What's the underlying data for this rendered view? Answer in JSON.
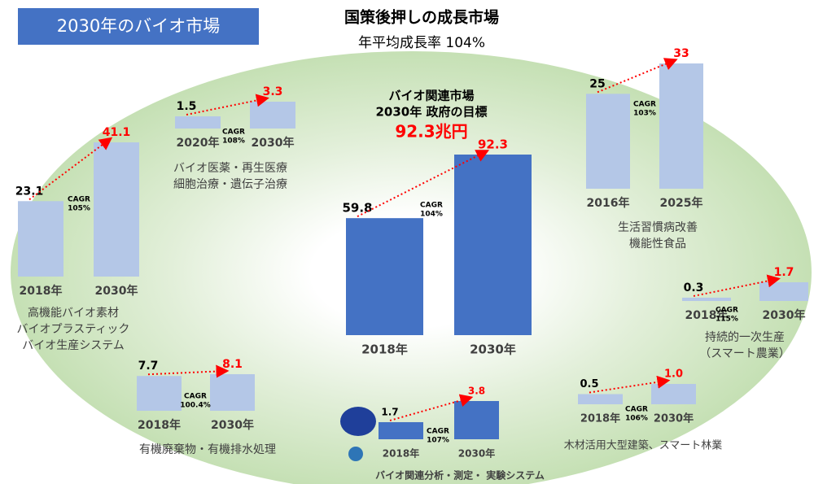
{
  "header": {
    "badge": "2030年のバイオ市場",
    "title": "国策後押しの成長市場",
    "subtitle": "年平均成長率 104%"
  },
  "chart_data": [
    {
      "type": "bar",
      "categories": [
        "2018年",
        "2030年"
      ],
      "values": [
        23.1,
        41.1
      ],
      "color": "#b4c7e7",
      "label_colors": [
        "#000000",
        "#ff0000"
      ],
      "annotation": [
        "CAGR",
        "105%"
      ],
      "description": [
        "高機能バイオ素材",
        "バイオプラスティック",
        "バイオ生産システム"
      ]
    },
    {
      "type": "bar",
      "categories": [
        "2020年",
        "2030年"
      ],
      "values": [
        1.5,
        3.3
      ],
      "color": "#b4c7e7",
      "label_colors": [
        "#000000",
        "#ff0000"
      ],
      "annotation": [
        "CAGR",
        "108%"
      ],
      "description": [
        "バイオ医薬・再生医療",
        "細胞治療・遺伝子治療"
      ]
    },
    {
      "type": "bar",
      "categories": [
        "2018年",
        "2030年"
      ],
      "values": [
        59.8,
        92.3
      ],
      "color": "#4472c4",
      "label_colors": [
        "#000000",
        "#ff0000"
      ],
      "annotation": [
        "CAGR",
        "104%"
      ],
      "headline": [
        "バイオ関連市場",
        "2030年 政府の目標"
      ],
      "headline_value": "92.3兆円"
    },
    {
      "type": "bar",
      "categories": [
        "2016年",
        "2025年"
      ],
      "values": [
        25,
        33
      ],
      "color": "#b4c7e7",
      "label_colors": [
        "#000000",
        "#ff0000"
      ],
      "annotation": [
        "CAGR",
        "103%"
      ],
      "description": [
        "生活習慣病改善",
        "機能性食品"
      ]
    },
    {
      "type": "bar",
      "categories": [
        "2018年",
        "2030年"
      ],
      "values": [
        0.3,
        1.7
      ],
      "color": "#b4c7e7",
      "label_colors": [
        "#000000",
        "#ff0000"
      ],
      "annotation": [
        "CAGR",
        "115%"
      ],
      "description": [
        "持続的一次生産",
        "（スマート農業）"
      ]
    },
    {
      "type": "bar",
      "categories": [
        "2018年",
        "2030年"
      ],
      "values": [
        7.7,
        8.1
      ],
      "color": "#b4c7e7",
      "label_colors": [
        "#000000",
        "#ff0000"
      ],
      "annotation": [
        "CAGR",
        "100.4%"
      ],
      "description": [
        "有機廃棄物・有機排水処理"
      ]
    },
    {
      "type": "bar",
      "categories": [
        "2018年",
        "2030年"
      ],
      "values": [
        1.7,
        3.8
      ],
      "color": "#4472c4",
      "label_colors": [
        "#000000",
        "#ff0000"
      ],
      "annotation": [
        "CAGR",
        "107%"
      ],
      "description": [
        "バイオ関連分析・測定・ 実験システム"
      ]
    },
    {
      "type": "bar",
      "categories": [
        "2018年",
        "2030年"
      ],
      "values": [
        0.5,
        1
      ],
      "value_labels": [
        "0.5",
        "1.0"
      ],
      "color": "#b4c7e7",
      "label_colors": [
        "#000000",
        "#ff0000"
      ],
      "annotation": [
        "CAGR",
        "106%"
      ],
      "description": [
        "木材活用大型建築、スマート林業"
      ]
    }
  ]
}
